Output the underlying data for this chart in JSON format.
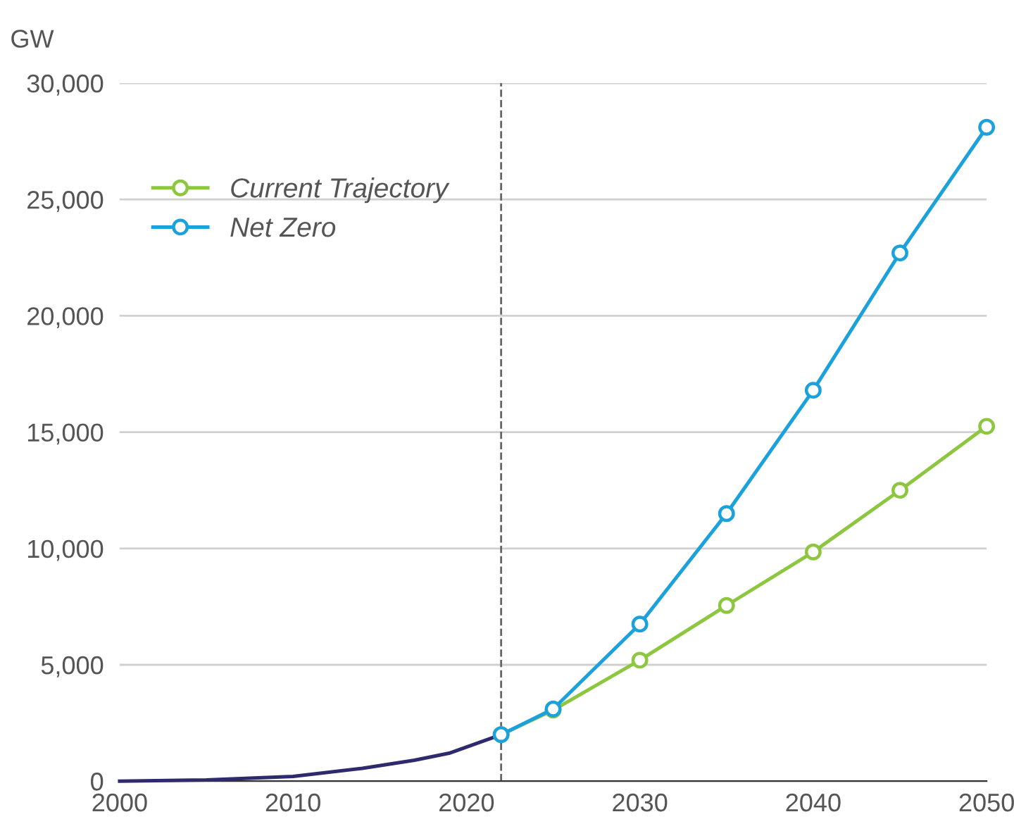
{
  "chart_data": {
    "type": "line",
    "ylabel": "GW",
    "xlim": [
      2000,
      2050
    ],
    "xticks": [
      2000,
      2010,
      2020,
      2030,
      2040,
      2050
    ],
    "ylim": [
      0,
      30000
    ],
    "yticks": [
      {
        "value": 0,
        "label": "0"
      },
      {
        "value": 5000,
        "label": "5,000"
      },
      {
        "value": 10000,
        "label": "10,000"
      },
      {
        "value": 15000,
        "label": "15,000"
      },
      {
        "value": 20000,
        "label": "20,000"
      },
      {
        "value": 25000,
        "label": "25,000"
      },
      {
        "value": 30000,
        "label": "30,000"
      }
    ],
    "grid": "y",
    "legend": "top left",
    "series": [
      {
        "color": "#2e2a6e",
        "marker": "none",
        "x": [
          2000,
          2005,
          2010,
          2014,
          2017,
          2019,
          2022
        ],
        "values": [
          0,
          50,
          200,
          550,
          900,
          1200,
          2000
        ]
      },
      {
        "name": "Current Trajectory",
        "color": "#8dc63f",
        "marker": "circle",
        "x": [
          2022,
          2025,
          2030,
          2035,
          2040,
          2045,
          2050
        ],
        "values": [
          2000,
          3050,
          5200,
          7550,
          9850,
          12500,
          15250
        ]
      },
      {
        "name": "Net Zero",
        "color": "#1ba1dc",
        "marker": "circle",
        "x": [
          2022,
          2025,
          2030,
          2035,
          2040,
          2045,
          2050
        ],
        "values": [
          2000,
          3100,
          6750,
          11500,
          16800,
          22700,
          28100
        ]
      }
    ],
    "ref_lines": [
      {
        "axis": "x",
        "value": 2022,
        "color": "#666666",
        "line_style": "dashed"
      }
    ]
  }
}
